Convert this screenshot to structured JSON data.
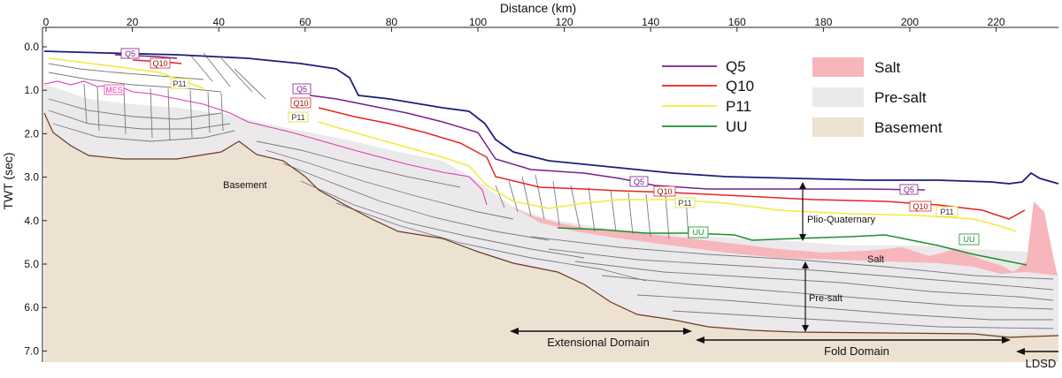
{
  "axes": {
    "x_title": "Distance (km)",
    "x_ticks": [
      "0",
      "20",
      "40",
      "60",
      "80",
      "100",
      "120",
      "140",
      "160",
      "180",
      "200",
      "220"
    ],
    "y_title": "TWT (sec)",
    "y_ticks": [
      "0.0",
      "1.0",
      "2.0",
      "3.0",
      "4.0",
      "5.0",
      "6.0",
      "7.0"
    ]
  },
  "legend": {
    "horizons": [
      {
        "label": "Q5",
        "color": "#7a1f8a"
      },
      {
        "label": "Q10",
        "color": "#e52421"
      },
      {
        "label": "P11",
        "color": "#f2ea3c"
      },
      {
        "label": "UU",
        "color": "#1f8f2e"
      }
    ],
    "units": [
      {
        "label": "Salt",
        "color": "#f7b6bc"
      },
      {
        "label": "Pre-salt",
        "color": "#ebe9ec"
      },
      {
        "label": "Basement",
        "color": "#ede1d2"
      }
    ]
  },
  "tags": {
    "q5_a": "Q5",
    "q10_a": "Q10",
    "p11_a": "P11",
    "mes": "MES",
    "q5_b": "Q5",
    "q10_b": "Q10",
    "p11_b": "P11",
    "q5_c": "Q5",
    "q10_c": "Q10",
    "p11_c": "P11",
    "uu_c": "UU",
    "q5_d": "Q5",
    "q10_d": "Q10",
    "p11_d": "P11",
    "uu_d": "UU"
  },
  "annotations": {
    "basement": "Basement",
    "plio_quaternary": "Plio-Quaternary",
    "salt": "Salt",
    "pre_salt": "Pre-salt"
  },
  "domains": {
    "extensional": "Extensional Domain",
    "fold": "Fold Domain",
    "ldsd": "LDSD"
  },
  "colors": {
    "seafloor": "#1c1f7a",
    "mes": "#e23ca8",
    "basement_line": "#6b3a22",
    "reflector": "#7a7a7a"
  }
}
